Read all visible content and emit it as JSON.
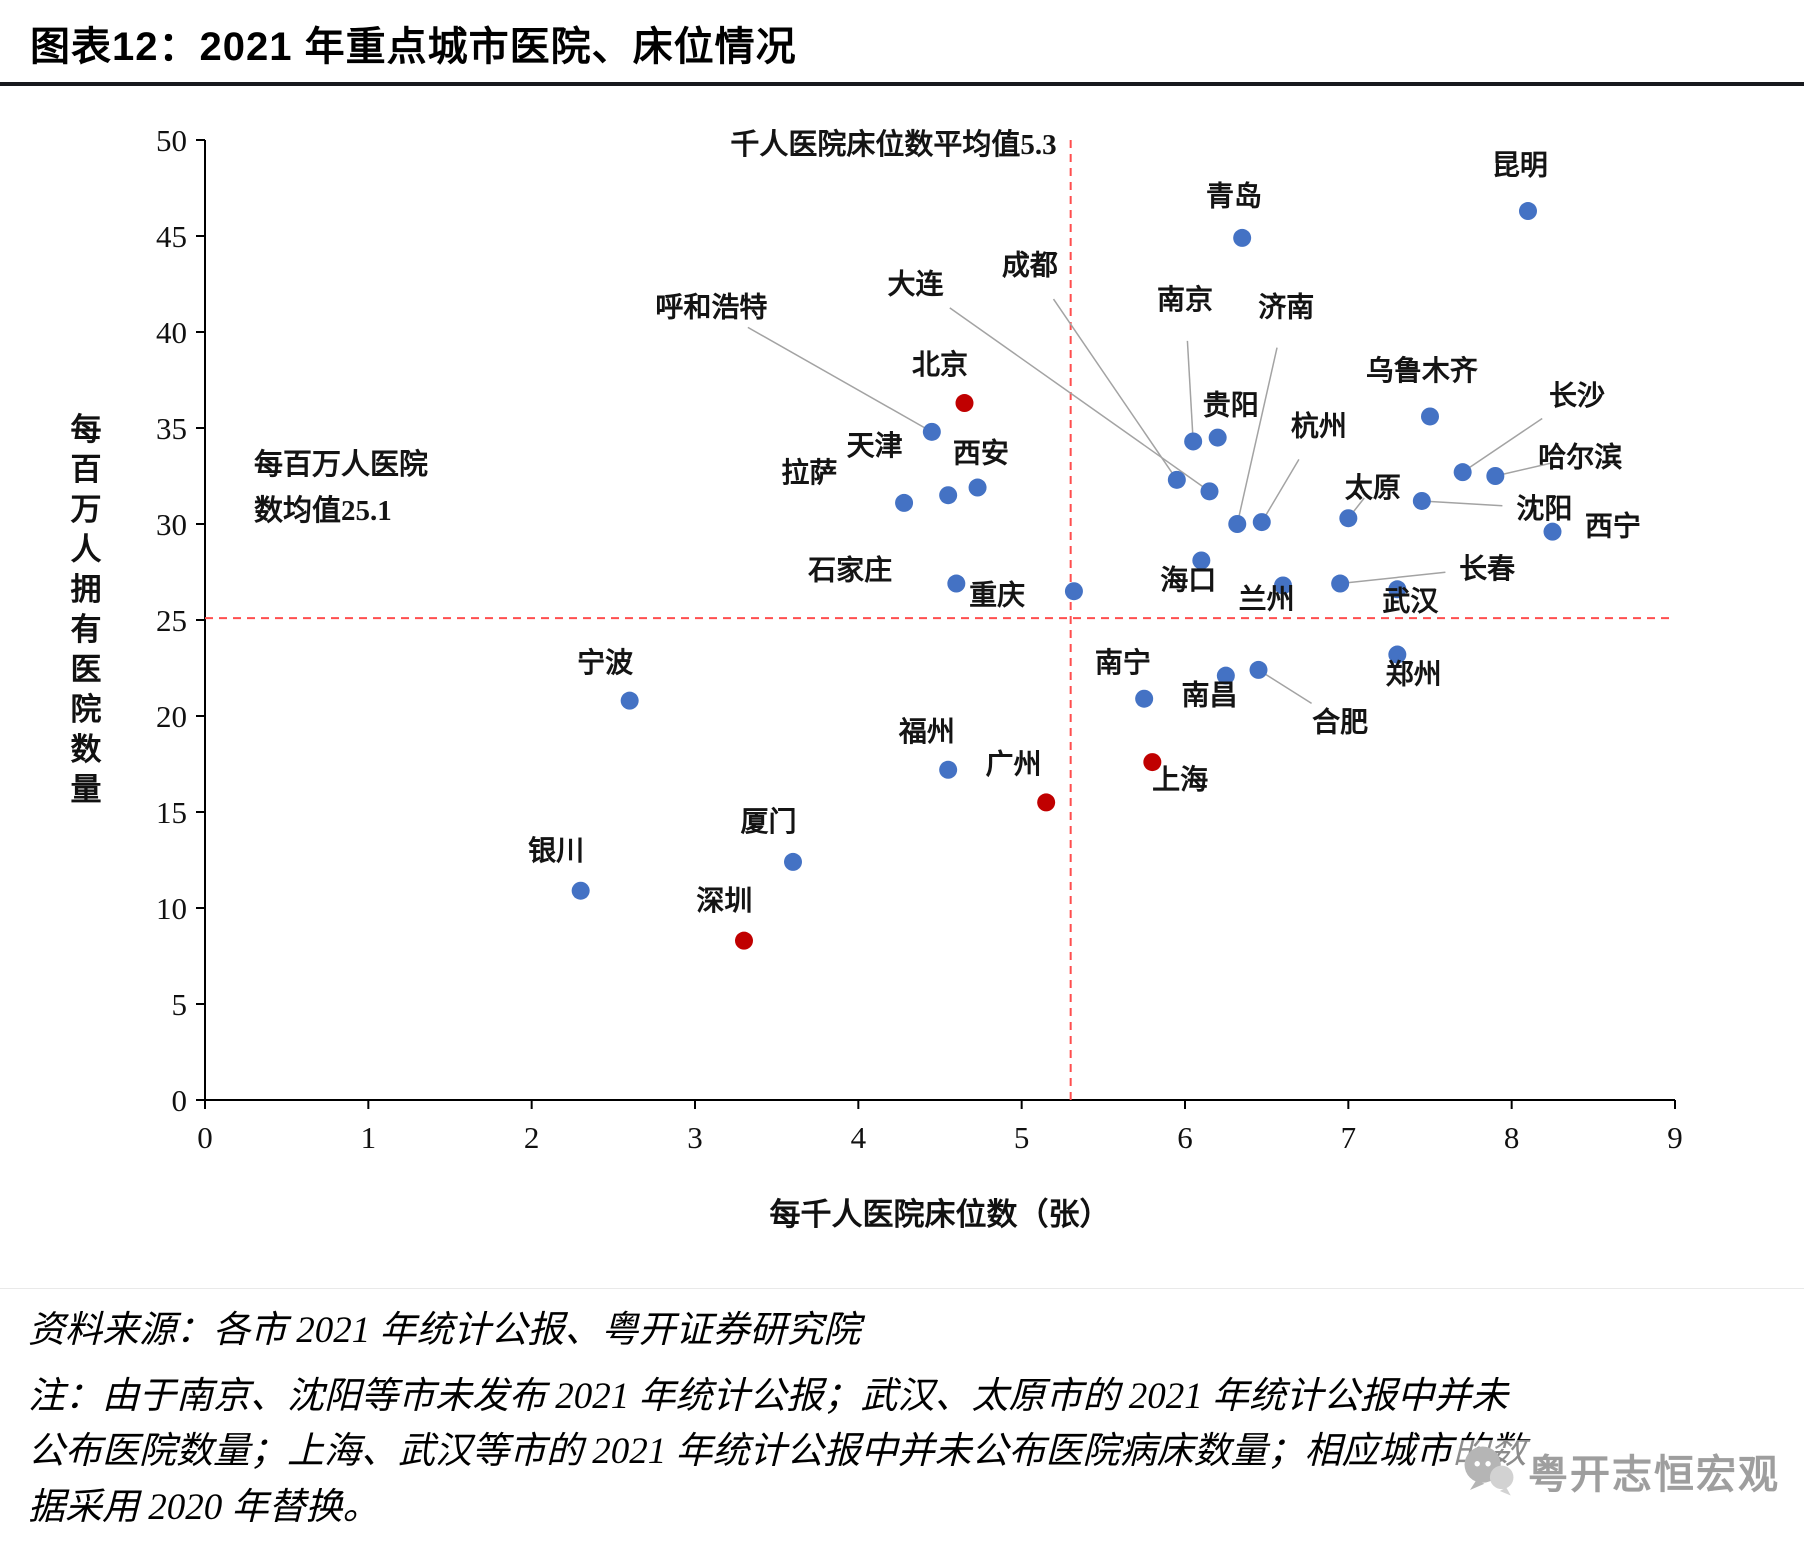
{
  "header": {
    "title": "图表12：2021 年重点城市医院、床位情况"
  },
  "chart_data": {
    "type": "scatter",
    "xlabel": "每千人医院床位数（张）",
    "ylabel": "每百万人拥有医院数量",
    "xlim": [
      0,
      9
    ],
    "ylim": [
      0,
      50
    ],
    "x_ticks": [
      0,
      1,
      2,
      3,
      4,
      5,
      6,
      7,
      8,
      9
    ],
    "y_ticks": [
      0,
      5,
      10,
      15,
      20,
      25,
      30,
      35,
      40,
      45,
      50
    ],
    "grid": false,
    "legend": "none",
    "mean_lines": {
      "x_value": 5.3,
      "y_value": 25.1,
      "x_label": "千人医院床位数平均值5.3",
      "y_label_lines": [
        "每百万人医院",
        "数均值25.1"
      ]
    },
    "colors": {
      "default": "#4472C4",
      "tier1": "#C00000",
      "mean_line": "#FF4E4E",
      "leader": "#A3A3A3"
    },
    "points": [
      {
        "name": "昆明",
        "x": 8.1,
        "y": 46.3,
        "group": "default",
        "lx": 8.05,
        "ly": 48.2,
        "leader": false
      },
      {
        "name": "青岛",
        "x": 6.35,
        "y": 44.9,
        "group": "default",
        "lx": 6.3,
        "ly": 46.6,
        "leader": false
      },
      {
        "name": "乌鲁木齐",
        "x": 7.5,
        "y": 35.6,
        "group": "default",
        "lx": 7.45,
        "ly": 37.5,
        "leader": false
      },
      {
        "name": "长沙",
        "x": 7.7,
        "y": 32.7,
        "group": "default",
        "lx": 8.4,
        "ly": 36.2,
        "leader": true
      },
      {
        "name": "哈尔滨",
        "x": 7.9,
        "y": 32.5,
        "group": "default",
        "lx": 8.42,
        "ly": 33.0,
        "leader": true
      },
      {
        "name": "沈阳",
        "x": 7.45,
        "y": 31.2,
        "group": "default",
        "lx": 8.2,
        "ly": 30.3,
        "leader": true
      },
      {
        "name": "西宁",
        "x": 8.25,
        "y": 29.6,
        "group": "default",
        "lx": 8.62,
        "ly": 29.4,
        "leader": false
      },
      {
        "name": "太原",
        "x": 7.0,
        "y": 30.3,
        "group": "default",
        "lx": 7.15,
        "ly": 31.4,
        "leader": true
      },
      {
        "name": "南京",
        "x": 6.05,
        "y": 34.3,
        "group": "default",
        "lx": 6.0,
        "ly": 41.2,
        "leader": true
      },
      {
        "name": "贵阳",
        "x": 6.2,
        "y": 34.5,
        "group": "default",
        "lx": 6.28,
        "ly": 35.7,
        "leader": false
      },
      {
        "name": "成都",
        "x": 5.95,
        "y": 32.3,
        "group": "default",
        "lx": 5.05,
        "ly": 43.0,
        "leader": true
      },
      {
        "name": "大连",
        "x": 6.15,
        "y": 31.7,
        "group": "default",
        "lx": 4.35,
        "ly": 42.0,
        "leader": true
      },
      {
        "name": "呼和浩特",
        "x": 4.45,
        "y": 34.8,
        "group": "default",
        "lx": 3.1,
        "ly": 40.8,
        "leader": true
      },
      {
        "name": "济南",
        "x": 6.32,
        "y": 30.0,
        "group": "default",
        "lx": 6.62,
        "ly": 40.8,
        "leader": true
      },
      {
        "name": "杭州",
        "x": 6.47,
        "y": 30.1,
        "group": "default",
        "lx": 6.82,
        "ly": 34.6,
        "leader": true
      },
      {
        "name": "北京",
        "x": 4.65,
        "y": 36.3,
        "group": "tier1",
        "lx": 4.5,
        "ly": 37.8,
        "leader": false
      },
      {
        "name": "西安",
        "x": 4.73,
        "y": 31.9,
        "group": "default",
        "lx": 4.75,
        "ly": 33.2,
        "leader": false
      },
      {
        "name": "拉萨",
        "x": 4.28,
        "y": 31.1,
        "group": "default",
        "lx": 3.7,
        "ly": 32.2,
        "leader": false
      },
      {
        "name": "天津",
        "x": 4.55,
        "y": 31.5,
        "group": "default",
        "lx": 4.1,
        "ly": 33.6,
        "leader": false
      },
      {
        "name": "石家庄",
        "x": 4.6,
        "y": 26.9,
        "group": "default",
        "lx": 3.95,
        "ly": 27.1,
        "leader": false
      },
      {
        "name": "重庆",
        "x": 5.32,
        "y": 26.5,
        "group": "default",
        "lx": 4.85,
        "ly": 25.8,
        "leader": false
      },
      {
        "name": "海口",
        "x": 6.1,
        "y": 28.1,
        "group": "default",
        "lx": 6.02,
        "ly": 26.6,
        "leader": false
      },
      {
        "name": "兰州",
        "x": 6.6,
        "y": 26.8,
        "group": "default",
        "lx": 6.5,
        "ly": 25.6,
        "leader": false
      },
      {
        "name": "长春",
        "x": 6.95,
        "y": 26.9,
        "group": "default",
        "lx": 7.85,
        "ly": 27.2,
        "leader": true
      },
      {
        "name": "武汉",
        "x": 7.3,
        "y": 26.6,
        "group": "default",
        "lx": 7.38,
        "ly": 25.5,
        "leader": false
      },
      {
        "name": "郑州",
        "x": 7.3,
        "y": 23.2,
        "group": "default",
        "lx": 7.4,
        "ly": 21.7,
        "leader": false
      },
      {
        "name": "合肥",
        "x": 6.45,
        "y": 22.4,
        "group": "default",
        "lx": 6.95,
        "ly": 19.2,
        "leader": true
      },
      {
        "name": "南昌",
        "x": 6.25,
        "y": 22.1,
        "group": "default",
        "lx": 6.15,
        "ly": 20.6,
        "leader": false
      },
      {
        "name": "南宁",
        "x": 5.75,
        "y": 20.9,
        "group": "default",
        "lx": 5.62,
        "ly": 22.3,
        "leader": false
      },
      {
        "name": "宁波",
        "x": 2.6,
        "y": 20.8,
        "group": "default",
        "lx": 2.45,
        "ly": 22.3,
        "leader": false
      },
      {
        "name": "福州",
        "x": 4.55,
        "y": 17.2,
        "group": "default",
        "lx": 4.42,
        "ly": 18.7,
        "leader": false
      },
      {
        "name": "上海",
        "x": 5.8,
        "y": 17.6,
        "group": "tier1",
        "lx": 5.97,
        "ly": 16.2,
        "leader": false
      },
      {
        "name": "广州",
        "x": 5.15,
        "y": 15.5,
        "group": "tier1",
        "lx": 4.95,
        "ly": 17.0,
        "leader": false
      },
      {
        "name": "厦门",
        "x": 3.6,
        "y": 12.4,
        "group": "default",
        "lx": 3.45,
        "ly": 14.0,
        "leader": false
      },
      {
        "name": "银川",
        "x": 2.3,
        "y": 10.9,
        "group": "default",
        "lx": 2.15,
        "ly": 12.5,
        "leader": false
      },
      {
        "name": "深圳",
        "x": 3.3,
        "y": 8.3,
        "group": "tier1",
        "lx": 3.18,
        "ly": 9.9,
        "leader": false
      }
    ]
  },
  "footer": {
    "source": "资料来源：各市 2021 年统计公报、粤开证券研究院",
    "note_lines": [
      "注：由于南京、沈阳等市未发布 2021 年统计公报；武汉、太原市的 2021 年统计公报中并未",
      "公布医院数量；上海、武汉等市的 2021 年统计公报中并未公布医院病床数量；相应城市的数",
      "据采用 2020 年替换。"
    ],
    "watermark": {
      "text": "粤开志恒宏观",
      "icon": "chat-bubbles-icon"
    }
  }
}
